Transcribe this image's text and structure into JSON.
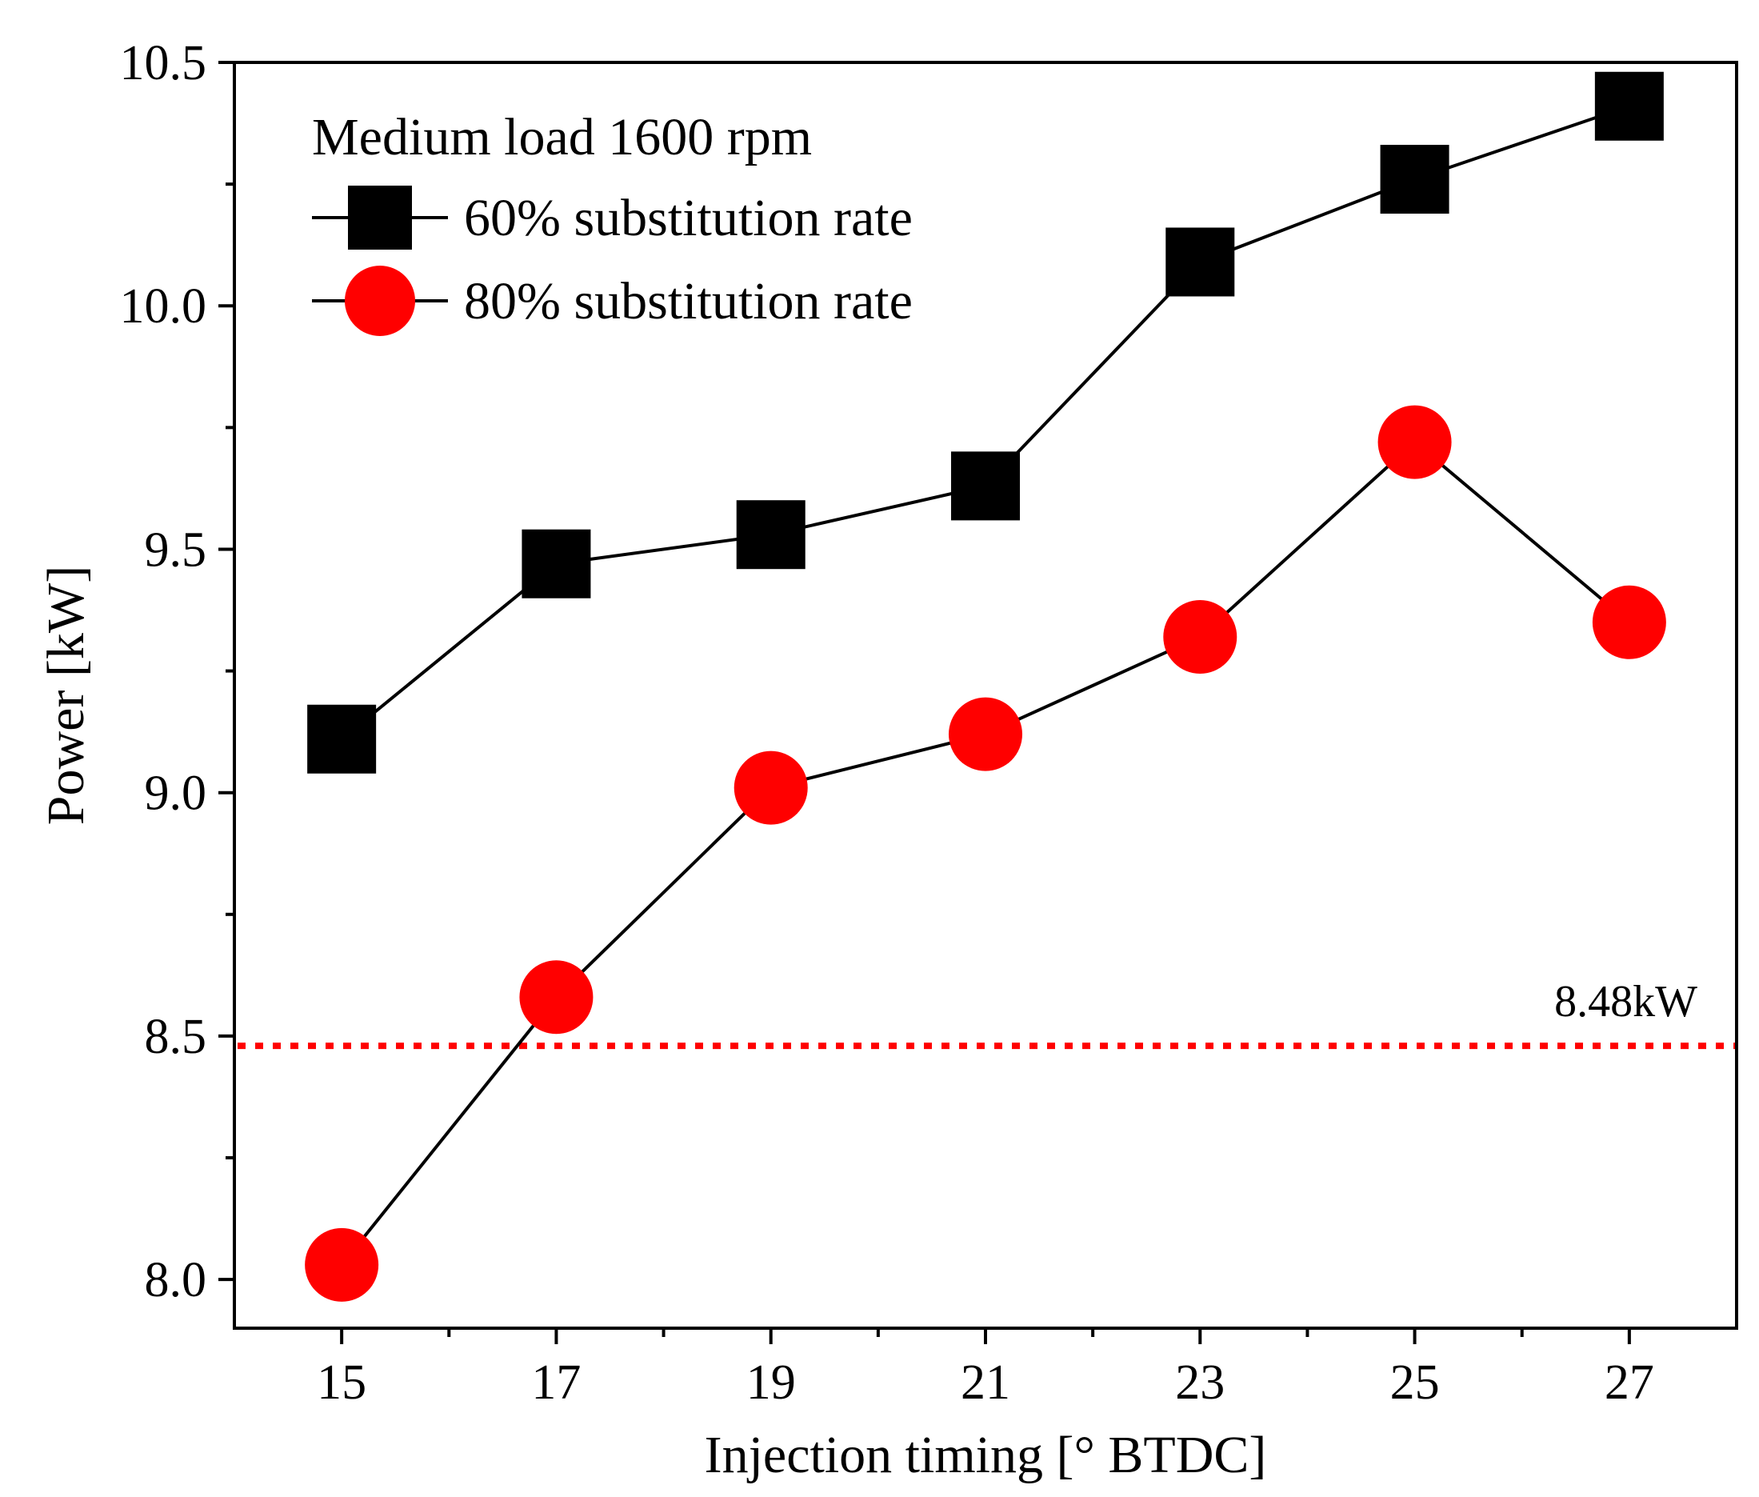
{
  "chart_data": {
    "type": "line",
    "title": "",
    "xlabel": "Injection timing [° BTDC]",
    "ylabel": "Power [kW]",
    "x": [
      15,
      17,
      19,
      21,
      23,
      25,
      27
    ],
    "x_tick_labels": [
      "15",
      "17",
      "19",
      "21",
      "23",
      "25",
      "27"
    ],
    "xlim": [
      14,
      28
    ],
    "ylim": [
      7.9,
      10.5
    ],
    "y_ticks": [
      8.0,
      8.5,
      9.0,
      9.5,
      10.0,
      10.5
    ],
    "y_tick_labels": [
      "8.0",
      "8.5",
      "9.0",
      "9.5",
      "10.0",
      "10.5"
    ],
    "grid": false,
    "legend": {
      "title": "Medium load 1600 rpm",
      "position": "top-left"
    },
    "series": [
      {
        "name": "60% substitution rate",
        "marker": "square",
        "color": "#000000",
        "values": [
          9.11,
          9.47,
          9.53,
          9.63,
          10.09,
          10.26,
          10.41
        ]
      },
      {
        "name": "80% substitution rate",
        "marker": "circle",
        "color": "#ff0000",
        "values": [
          8.03,
          8.58,
          9.01,
          9.12,
          9.32,
          9.72,
          9.35
        ]
      }
    ],
    "reference_line": {
      "value": 8.48,
      "label": "8.48kW",
      "color": "#ff0000",
      "style": "dotted"
    }
  }
}
